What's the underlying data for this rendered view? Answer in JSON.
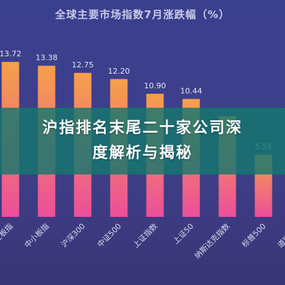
{
  "banner": {
    "headline": "沪指排名末尾二十家公司深度解析与揭秘"
  },
  "colors": {
    "bar_top": "#f5a04a",
    "bar_bottom": "#ec4f9a",
    "label": "#e6e6f4",
    "axis_text": "#d9d9ee"
  },
  "chart_data": {
    "type": "bar",
    "title": "全球主要市场指数7月涨跌幅（%）",
    "categories": [
      "创业板指",
      "中小板指",
      "沪深300",
      "中证500",
      "上证指数",
      "上证50",
      "纳斯达克指数",
      "标普500",
      "道琼斯工"
    ],
    "values": [
      13.72,
      13.38,
      12.75,
      12.2,
      10.9,
      10.44,
      8.9,
      5.51,
      3.9
    ],
    "value_labels": [
      "13.72",
      "13.38",
      "12.75",
      "12.20",
      "10.90",
      "10.44",
      "",
      "5.51",
      ""
    ],
    "ylim": [
      0,
      16
    ],
    "grid": false,
    "legend": "none"
  }
}
